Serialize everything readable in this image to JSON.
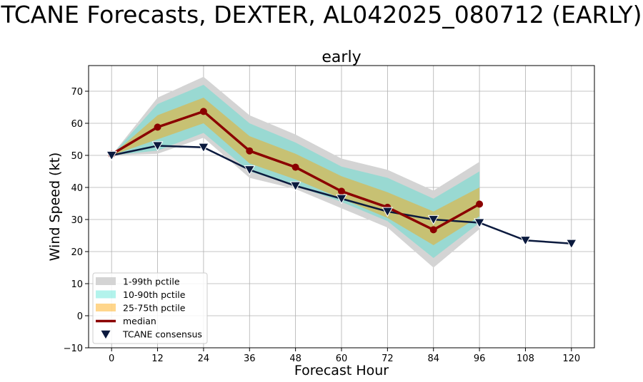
{
  "figure_title": "TCANE Forecasts, DEXTER, AL042025_080712 (EARLY)",
  "chart_data": {
    "type": "line",
    "title": "early",
    "xlabel": "Forecast Hour",
    "ylabel": "Wind Speed (kt)",
    "xlim": [
      -6,
      126
    ],
    "ylim": [
      -10,
      78
    ],
    "x_ticks": [
      0,
      12,
      24,
      36,
      48,
      60,
      72,
      84,
      96,
      108,
      120
    ],
    "y_ticks": [
      -10,
      0,
      10,
      20,
      30,
      40,
      50,
      60,
      70
    ],
    "grid": true,
    "legend_position": "lower-left",
    "bands": [
      {
        "name": "1-99th pctile",
        "color": "#d4d4d4",
        "opacity": 1.0,
        "x": [
          0,
          12,
          24,
          36,
          48,
          60,
          72,
          84,
          96
        ],
        "lower": [
          50,
          50.5,
          55.5,
          43,
          39.5,
          33.5,
          27.5,
          15,
          27
        ],
        "upper": [
          50,
          68,
          74.5,
          62.5,
          56.5,
          49,
          45.5,
          39,
          48
        ]
      },
      {
        "name": "10-90th pctile",
        "color": "#40e0d0",
        "opacity": 0.4,
        "x": [
          0,
          12,
          24,
          36,
          48,
          60,
          72,
          84,
          96
        ],
        "lower": [
          50,
          51.5,
          57,
          45,
          40.5,
          35.5,
          29.5,
          18,
          29
        ],
        "upper": [
          50,
          66,
          72,
          60,
          54,
          46.5,
          43,
          36.5,
          45
        ]
      },
      {
        "name": "25-75th pctile",
        "color": "#ffa500",
        "opacity": 0.45,
        "x": [
          0,
          12,
          24,
          36,
          48,
          60,
          72,
          84,
          96
        ],
        "lower": [
          50,
          55,
          60,
          47.5,
          42.5,
          36.5,
          30.5,
          22,
          31
        ],
        "upper": [
          50,
          62.5,
          68,
          56,
          50.5,
          43.5,
          38.5,
          32.5,
          40
        ]
      }
    ],
    "series": [
      {
        "name": "median",
        "color": "#8b0000",
        "marker": "circle",
        "x": [
          0,
          12,
          24,
          36,
          48,
          60,
          72,
          84,
          96
        ],
        "y": [
          50.3,
          58.8,
          63.7,
          51.4,
          46.3,
          38.8,
          33.8,
          26.8,
          34.8
        ]
      },
      {
        "name": "TCANE consensus",
        "color": "#0b1a3e",
        "marker": "triangle-down",
        "x": [
          0,
          12,
          24,
          36,
          48,
          60,
          72,
          84,
          96,
          108,
          120
        ],
        "y": [
          50,
          53,
          52.5,
          45.5,
          40.5,
          36.5,
          32.5,
          30,
          29,
          23.5,
          22.5
        ]
      }
    ]
  }
}
